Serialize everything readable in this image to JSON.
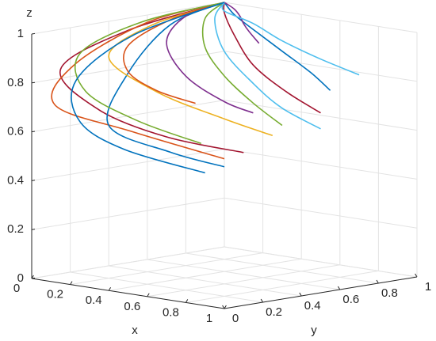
{
  "chart_data": {
    "type": "line3d",
    "xlabel": "x",
    "ylabel": "y",
    "zlabel": "z",
    "xlim": [
      0,
      1
    ],
    "ylim": [
      0,
      1
    ],
    "zlim": [
      0,
      1
    ],
    "xticks": [
      0,
      0.2,
      0.4,
      0.6,
      0.8,
      1
    ],
    "yticks": [
      0,
      0.2,
      0.4,
      0.6,
      0.8,
      1
    ],
    "zticks": [
      0,
      0.2,
      0.4,
      0.6,
      0.8,
      1
    ],
    "grid": true,
    "series": [
      {
        "color": "#A2142F",
        "x": [
          0,
          0,
          0.05,
          0.3,
          0.6,
          0.9
        ],
        "y": [
          1,
          0.5,
          0.1,
          0.05,
          0.1,
          0.2
        ],
        "z": [
          1,
          0.95,
          0.85,
          0.72,
          0.64,
          0.6
        ]
      },
      {
        "color": "#D95319",
        "x": [
          0,
          0,
          0.02,
          0.1,
          0.5,
          0.95
        ],
        "y": [
          1,
          0.6,
          0.2,
          0.02,
          0.02,
          0.05
        ],
        "z": [
          1,
          0.97,
          0.85,
          0.72,
          0.66,
          0.6
        ]
      },
      {
        "color": "#0072BD",
        "x": [
          0,
          0.02,
          0.1,
          0.3,
          0.7,
          1
        ],
        "y": [
          1,
          0.7,
          0.4,
          0.1,
          0.02,
          0
        ],
        "z": [
          1,
          0.95,
          0.8,
          0.65,
          0.6,
          0.58
        ]
      },
      {
        "color": "#EDB120",
        "x": [
          0,
          0.02,
          0.1,
          0.4,
          0.7,
          0.9
        ],
        "y": [
          1,
          0.6,
          0.3,
          0.25,
          0.3,
          0.35
        ],
        "z": [
          1,
          0.96,
          0.88,
          0.78,
          0.7,
          0.65
        ]
      },
      {
        "color": "#7E2F8E",
        "x": [
          0,
          0,
          0.1,
          0.3,
          0.5,
          0.6
        ],
        "y": [
          1,
          0.8,
          0.6,
          0.5,
          0.5,
          0.55
        ],
        "z": [
          1,
          0.97,
          0.9,
          0.8,
          0.72,
          0.68
        ]
      },
      {
        "color": "#77AC30",
        "x": [
          0,
          0.05,
          0.2,
          0.4,
          0.6,
          0.8
        ],
        "y": [
          1,
          0.85,
          0.7,
          0.6,
          0.55,
          0.5
        ],
        "z": [
          1,
          0.96,
          0.88,
          0.8,
          0.72,
          0.66
        ]
      },
      {
        "color": "#4DBEEE",
        "x": [
          0,
          0.05,
          0.2,
          0.4,
          0.6,
          0.8
        ],
        "y": [
          1,
          0.9,
          0.8,
          0.75,
          0.7,
          0.7
        ],
        "z": [
          1,
          0.95,
          0.85,
          0.75,
          0.68,
          0.62
        ]
      },
      {
        "color": "#A2142F",
        "x": [
          0,
          0.05,
          0.15,
          0.3,
          0.5,
          0.7
        ],
        "y": [
          1,
          0.95,
          0.9,
          0.85,
          0.82,
          0.8
        ],
        "z": [
          1,
          0.97,
          0.9,
          0.8,
          0.72,
          0.66
        ]
      },
      {
        "color": "#0072BD",
        "x": [
          0,
          0.1,
          0.2,
          0.35,
          0.5,
          0.6
        ],
        "y": [
          1,
          0.95,
          0.95,
          0.95,
          0.95,
          0.95
        ],
        "z": [
          1,
          0.97,
          0.92,
          0.85,
          0.78,
          0.72
        ]
      },
      {
        "color": "#7E2F8E",
        "x": [
          0,
          0.05,
          0.1,
          0.12,
          0.15,
          0.2
        ],
        "y": [
          1,
          1,
          0.98,
          0.98,
          0.98,
          0.98
        ],
        "z": [
          1,
          0.98,
          0.96,
          0.93,
          0.9,
          0.86
        ]
      },
      {
        "color": "#D95319",
        "x": [
          0,
          0.02,
          0.05,
          0.15,
          0.3,
          0.45
        ],
        "y": [
          1,
          0.7,
          0.45,
          0.35,
          0.35,
          0.4
        ],
        "z": [
          1,
          0.97,
          0.9,
          0.82,
          0.76,
          0.72
        ]
      },
      {
        "color": "#77AC30",
        "x": [
          0,
          0.02,
          0.05,
          0.2,
          0.5,
          0.8
        ],
        "y": [
          1,
          0.55,
          0.2,
          0.08,
          0.05,
          0.08
        ],
        "z": [
          1,
          0.98,
          0.9,
          0.78,
          0.7,
          0.64
        ]
      },
      {
        "color": "#4DBEEE",
        "x": [
          0,
          0.1,
          0.3,
          0.5,
          0.7,
          0.9
        ],
        "y": [
          1,
          0.9,
          0.85,
          0.8,
          0.8,
          0.8
        ],
        "z": [
          1,
          0.99,
          0.97,
          0.93,
          0.88,
          0.84
        ]
      },
      {
        "color": "#0072BD",
        "x": [
          0,
          0.02,
          0.08,
          0.2,
          0.45,
          0.85
        ],
        "y": [
          1,
          0.5,
          0.15,
          0.05,
          0.03,
          0.05
        ],
        "z": [
          1,
          0.93,
          0.8,
          0.66,
          0.58,
          0.53
        ]
      }
    ]
  }
}
